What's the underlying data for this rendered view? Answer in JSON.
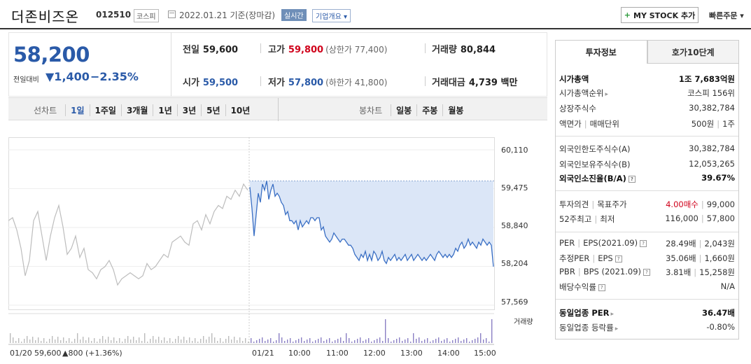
{
  "header": {
    "name": "더존비즈온",
    "code": "012510",
    "market": "코스피",
    "date": "2022.01.21  기준(장마감)",
    "realtime": "실시간",
    "company_info": "기업개요 ▾",
    "mystock": "MY STOCK 추가",
    "quick_order": "빠른주문 ▾"
  },
  "price": {
    "current": "58,200",
    "change_label": "전일대비",
    "change": "▼1,400",
    "change_pct": "−2.35%"
  },
  "stats": {
    "prev_label": "전일",
    "prev": "59,600",
    "high_label": "고가",
    "high": "59,800",
    "upper_limit": "(상한가 77,400)",
    "volume_label": "거래량",
    "volume": "80,844",
    "open_label": "시가",
    "open": "59,500",
    "low_label": "저가",
    "low": "57,800",
    "lower_limit": "(하한가 41,800)",
    "amount_label": "거래대금",
    "amount": "4,739 백만"
  },
  "period_bar": {
    "line_label": "선차트",
    "line_opts": [
      "1일",
      "1주일",
      "3개월",
      "1년",
      "3년",
      "5년",
      "10년"
    ],
    "bong_label": "봉차트",
    "bong_opts": [
      "일봉",
      "주봉",
      "월봉"
    ]
  },
  "chart_data": {
    "type": "line",
    "y_ticks": [
      "60,110",
      "59,475",
      "58,840",
      "58,204",
      "57,569"
    ],
    "ylim": [
      57569,
      60110
    ],
    "x_ticks": [
      "01/21",
      "10:00",
      "11:00",
      "12:00",
      "13:00",
      "14:00",
      "15:00"
    ],
    "prev_day_label": "01/20",
    "prev_day_close": "59,600",
    "prev_day_change": "▲800 (+1.36%)",
    "volume_label": "거래량",
    "reference_price": 59600,
    "series": [
      {
        "x": [
          0,
          6,
          12,
          18,
          24,
          30,
          36,
          42,
          48,
          54,
          60,
          66,
          72,
          78,
          84,
          90,
          96,
          102,
          108,
          114,
          120,
          126,
          132,
          138,
          144,
          150,
          156,
          162,
          168,
          174,
          180,
          186,
          192,
          198,
          204,
          210,
          216,
          222,
          228,
          234,
          240,
          246,
          252,
          258,
          264,
          270,
          276,
          282,
          288,
          294,
          300,
          306,
          312,
          318,
          324,
          330,
          336,
          342
        ],
        "y": [
          58950,
          59000,
          58800,
          58500,
          58050,
          58300,
          58950,
          59100,
          58700,
          58300,
          58700,
          59000,
          59200,
          58850,
          58400,
          58500,
          58700,
          58350,
          58500,
          58150,
          58100,
          58000,
          58150,
          58200,
          58300,
          58150,
          57900,
          58000,
          58050,
          58100,
          58050,
          58000,
          58050,
          58250,
          58150,
          58200,
          58300,
          58400,
          58350,
          58600,
          58650,
          58700,
          58600,
          58550,
          58900,
          58950,
          58800,
          59050,
          58900,
          59100,
          59200,
          59150,
          59350,
          59300,
          59450,
          59350,
          59550,
          59450
        ]
      },
      {
        "x": [
          345,
          348,
          351,
          354,
          357,
          360,
          363,
          366,
          369,
          372,
          375,
          378,
          381,
          384,
          387,
          390,
          393,
          396,
          399,
          402,
          405,
          408,
          411,
          414,
          417,
          420,
          423,
          426,
          429,
          432,
          435,
          438,
          441,
          444,
          447,
          450,
          453,
          456,
          459,
          462,
          465,
          468,
          471,
          474,
          477,
          480,
          483,
          486,
          489,
          492,
          495,
          498,
          501,
          504,
          507,
          510,
          513,
          516,
          519,
          522,
          525,
          528,
          531,
          534,
          537,
          540,
          543,
          546,
          549,
          552,
          555,
          558,
          561,
          564,
          567,
          570,
          573,
          576,
          579,
          582,
          585,
          588,
          591,
          594,
          597,
          600,
          603,
          606,
          609,
          612,
          615,
          618,
          621,
          624,
          627,
          630,
          633,
          636,
          639,
          642,
          645,
          648,
          651,
          654,
          657,
          660,
          663,
          666,
          669,
          672,
          675,
          678,
          681,
          684,
          687,
          690,
          693
        ],
        "y": [
          59500,
          59150,
          58700,
          59050,
          59400,
          59250,
          59550,
          59450,
          59600,
          59300,
          59450,
          59550,
          59350,
          59400,
          59350,
          59250,
          59200,
          59050,
          59100,
          58950,
          58950,
          58900,
          58950,
          58800,
          58950,
          58850,
          58900,
          58950,
          58900,
          59000,
          59000,
          58950,
          59000,
          59000,
          58800,
          58850,
          58700,
          58650,
          58600,
          58650,
          58750,
          58700,
          58650,
          58600,
          58650,
          58650,
          58600,
          58550,
          58550,
          58500,
          58400,
          58350,
          58300,
          58400,
          58350,
          58450,
          58300,
          58400,
          58300,
          58450,
          58400,
          58300,
          58350,
          58450,
          58300,
          58250,
          58350,
          58300,
          58350,
          58400,
          58300,
          58350,
          58300,
          58350,
          58400,
          58300,
          58350,
          58400,
          58300,
          58350,
          58400,
          58350,
          58300,
          58350,
          58300,
          58350,
          58400,
          58350,
          58300,
          58400,
          58450,
          58400,
          58350,
          58400,
          58350,
          58400,
          58350,
          58400,
          58500,
          58450,
          58550,
          58600,
          58500,
          58550,
          58650,
          58550,
          58600,
          58550,
          58500,
          58600,
          58550,
          58650,
          58600,
          58550,
          58600,
          58550,
          58200
        ]
      }
    ]
  },
  "invest_tabs": [
    "투자정보",
    "호가10단계"
  ],
  "invest": {
    "mktcap_k": "시가총액",
    "mktcap_v": "1조 7,683억원",
    "mktrank_k": "시가총액순위",
    "mktrank_v": "코스피 156위",
    "shares_k": "상장주식수",
    "shares_v": "30,382,784",
    "par_k": "액면가",
    "unit_k": "매매단위",
    "par_v": "500원",
    "unit_v": "1주",
    "foreign_limit_k": "외국인한도주식수(A)",
    "foreign_limit_v": "30,382,784",
    "foreign_hold_k": "외국인보유주식수(B)",
    "foreign_hold_v": "12,053,265",
    "foreign_ratio_k": "외국인소진율(B/A)",
    "foreign_ratio_v": "39.67%",
    "opinion_k": "투자의견",
    "target_k": "목표주가",
    "opinion_v": "4.00매수",
    "target_v": "99,000",
    "w52_k": "52주최고",
    "w52_low_k": "최저",
    "w52_v": "116,000",
    "w52_low_v": "57,800",
    "per_k": "PER",
    "eps_k": "EPS(2021.09)",
    "per_v": "28.49배",
    "eps_v": "2,043원",
    "eper_k": "추정PER",
    "eeps_k": "EPS",
    "eper_v": "35.06배",
    "eeps_v": "1,660원",
    "pbr_k": "PBR",
    "bps_k": "BPS (2021.09)",
    "pbr_v": "3.81배",
    "bps_v": "15,258원",
    "div_k": "배당수익률",
    "div_v": "N/A",
    "ind_per_k": "동일업종 PER",
    "ind_per_v": "36.47배",
    "ind_rate_k": "동일업종 등락률",
    "ind_rate_v": "-0.80%"
  }
}
